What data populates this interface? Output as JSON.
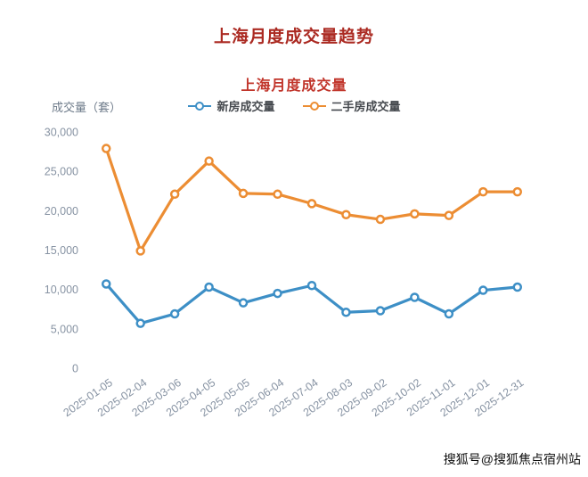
{
  "page": {
    "title": "上海月度成交量趋势",
    "title_color": "#ab2a22",
    "watermark": "搜狐号@搜狐焦点宿州站"
  },
  "chart_data": {
    "type": "line",
    "title": "上海月度成交量",
    "title_color": "#c1352b",
    "ylabel": "成交量（套）",
    "ylim": [
      0,
      30000
    ],
    "ytick_step": 5000,
    "grid": false,
    "legend_position": "top",
    "axis_text_color": "#8793a3",
    "categories": [
      "2025-01-05",
      "2025-02-04",
      "2025-03-06",
      "2025-04-05",
      "2025-05-05",
      "2025-06-04",
      "2025-07-04",
      "2025-08-03",
      "2025-09-02",
      "2025-10-02",
      "2025-11-01",
      "2025-12-01",
      "2025-12-31"
    ],
    "series": [
      {
        "name": "新房成交量",
        "color": "#3d8fc6",
        "values": [
          10700,
          5700,
          6900,
          10300,
          8300,
          9500,
          10500,
          7100,
          7300,
          9000,
          6900,
          9900,
          10300
        ]
      },
      {
        "name": "二手房成交量",
        "color": "#ec8d33",
        "values": [
          27900,
          14900,
          22100,
          26300,
          22200,
          22100,
          20900,
          19500,
          18900,
          19600,
          19400,
          22400,
          22400
        ]
      }
    ]
  }
}
